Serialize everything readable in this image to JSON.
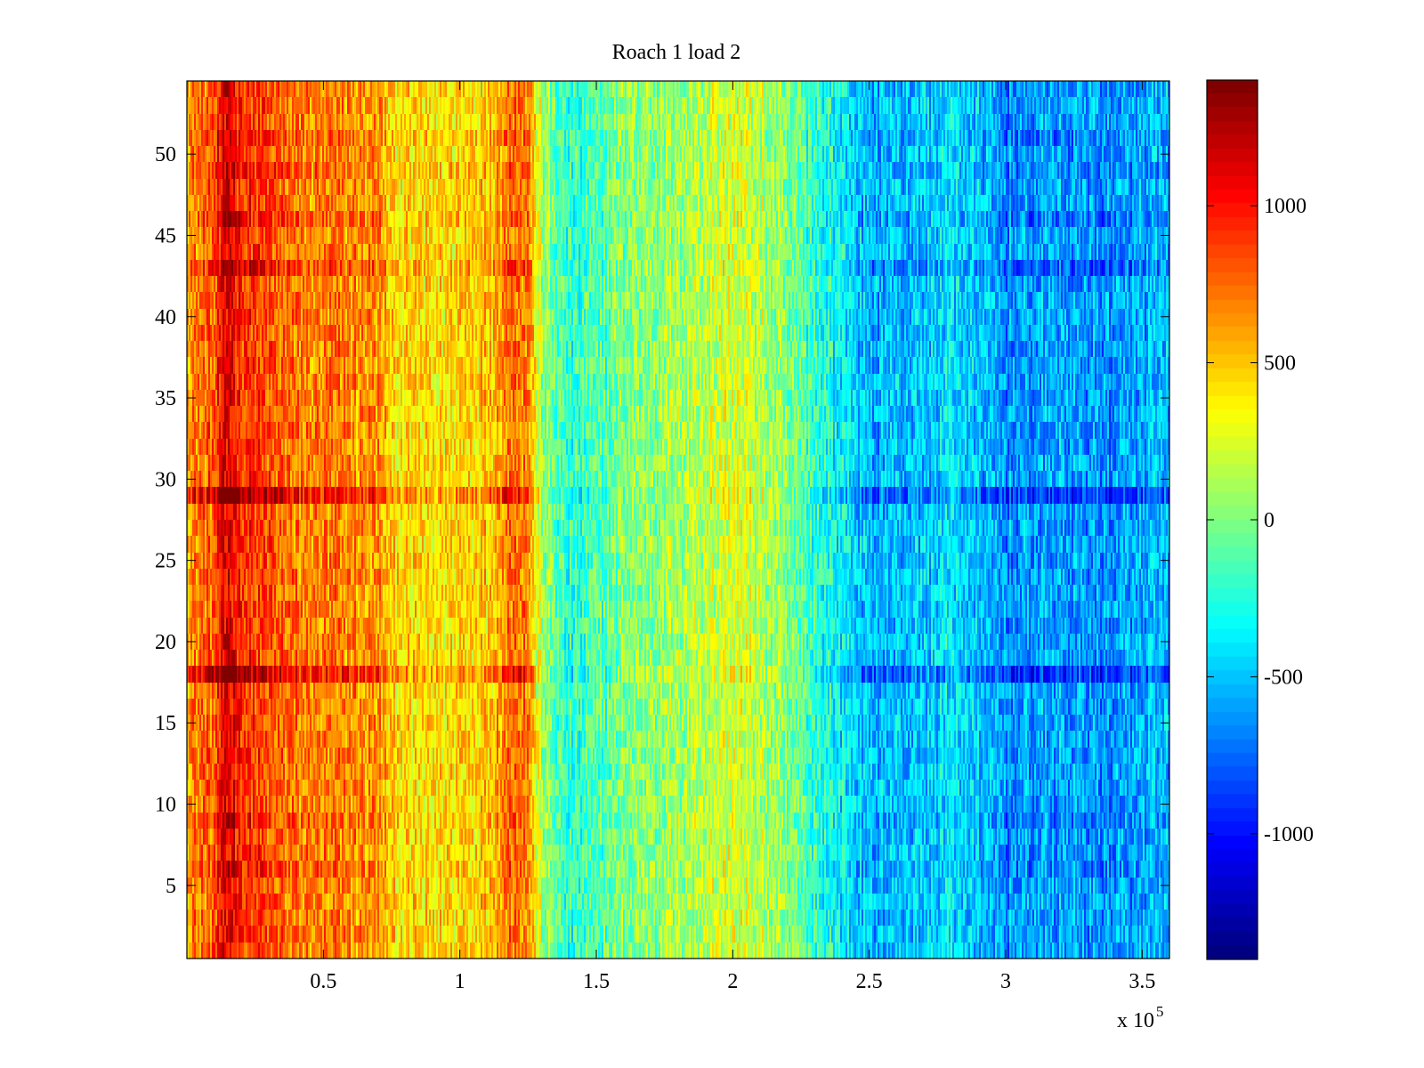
{
  "chart_data": {
    "type": "heatmap",
    "title": "Roach 1 load 2",
    "xlabel": "",
    "ylabel": "",
    "x_multiplier_label": "x 10",
    "x_multiplier_exponent": "5",
    "xlim": [
      0,
      3.6
    ],
    "ylim": [
      0.5,
      54.5
    ],
    "x_ticks": [
      0.5,
      1,
      1.5,
      2,
      2.5,
      3,
      3.5
    ],
    "x_tick_labels": [
      "0.5",
      "1",
      "1.5",
      "2",
      "2.5",
      "3",
      "3.5"
    ],
    "y_ticks": [
      5,
      10,
      15,
      20,
      25,
      30,
      35,
      40,
      45,
      50
    ],
    "y_tick_labels": [
      "5",
      "10",
      "15",
      "20",
      "25",
      "30",
      "35",
      "40",
      "45",
      "50"
    ],
    "colormap": "jet",
    "clim": [
      -1400,
      1400
    ],
    "colorbar_ticks": [
      1000,
      500,
      0,
      -500,
      -1000
    ],
    "colorbar_tick_labels": [
      "1000",
      "500",
      "0",
      "-500",
      "-1000"
    ],
    "rows": 54,
    "column_profile": {
      "x": [
        0,
        0.1,
        0.15,
        0.2,
        0.4,
        0.7,
        0.75,
        0.9,
        1.1,
        1.2,
        1.25,
        1.3,
        1.4,
        1.5,
        1.6,
        1.8,
        2.0,
        2.1,
        2.3,
        2.5,
        2.7,
        2.8,
        3.0,
        3.2,
        3.4,
        3.6
      ],
      "value": [
        650,
        800,
        1150,
        950,
        700,
        650,
        450,
        400,
        500,
        800,
        700,
        100,
        -250,
        -150,
        0,
        100,
        250,
        150,
        -200,
        -550,
        -500,
        -400,
        -650,
        -600,
        -650,
        -550
      ]
    },
    "row_offsets": [
      {
        "row": 18,
        "scale": 1.45
      },
      {
        "row": 29,
        "scale": 1.45
      },
      {
        "row": 43,
        "scale": 1.25
      },
      {
        "row": 46,
        "scale": 1.15
      },
      {
        "row": 49,
        "scale": 1.1
      },
      {
        "row": 51,
        "scale": 1.1
      },
      {
        "row": 6,
        "scale": 1.1
      },
      {
        "row": 9,
        "scale": 1.1
      }
    ],
    "noise_amplitude": 260
  }
}
